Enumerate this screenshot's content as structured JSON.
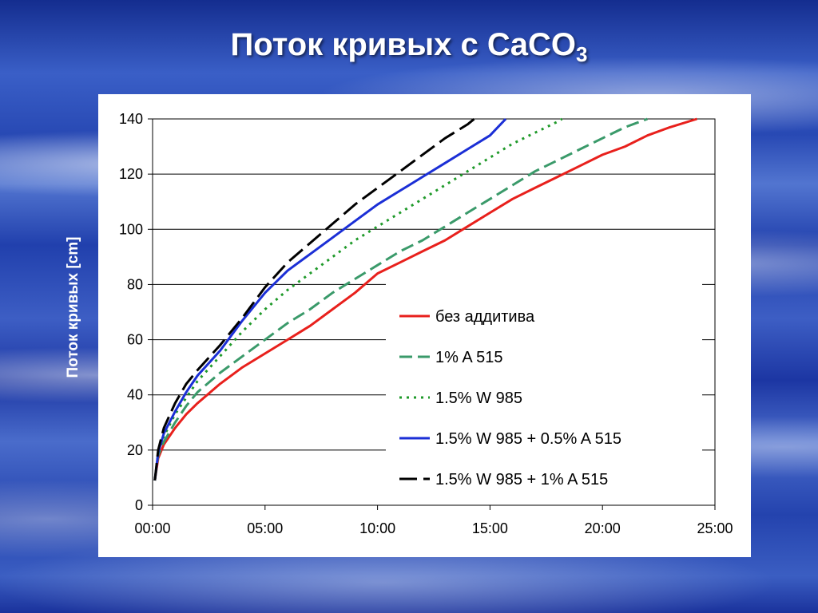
{
  "slide": {
    "title_main": "Поток кривых с CaCO",
    "title_sub": "3"
  },
  "chart_data": {
    "type": "line",
    "title": "",
    "xlabel": "",
    "ylabel": "Поток кривых [cm]",
    "xlim": [
      0,
      25
    ],
    "ylim": [
      0,
      140
    ],
    "x_ticks": [
      0,
      5,
      10,
      15,
      20,
      25
    ],
    "x_tick_labels": [
      "00:00",
      "05:00",
      "10:00",
      "15:00",
      "20:00",
      "25:00"
    ],
    "y_ticks": [
      0,
      20,
      40,
      60,
      80,
      100,
      120,
      140
    ],
    "y_tick_labels": [
      "0",
      "20",
      "40",
      "60",
      "80",
      "100",
      "120",
      "140"
    ],
    "grid": "horizontal",
    "legend_position": "lower-right",
    "series": [
      {
        "name": "без аддитива",
        "color": "#e8201c",
        "style": "solid",
        "x": [
          0.1,
          0.25,
          0.5,
          1,
          1.5,
          2,
          3,
          4,
          5,
          6,
          7,
          8,
          9,
          10,
          11,
          12,
          13,
          14,
          15,
          16,
          17,
          18,
          19,
          20,
          21,
          22,
          23,
          24.2
        ],
        "y": [
          9,
          17,
          22,
          28,
          33,
          37,
          44,
          50,
          55,
          60,
          65,
          71,
          77,
          84,
          88,
          92,
          96,
          101,
          106,
          111,
          115,
          119,
          123,
          127,
          130,
          134,
          137,
          140
        ]
      },
      {
        "name": "1% A 515",
        "color": "#3a9a6a",
        "style": "dash",
        "x": [
          0.1,
          0.25,
          0.5,
          1,
          1.5,
          2,
          3,
          4,
          5,
          6,
          7,
          8,
          9,
          10,
          11,
          12,
          13,
          14,
          15,
          16,
          17,
          18,
          19,
          20,
          21,
          22
        ],
        "y": [
          9,
          18,
          23,
          30,
          36,
          41,
          48,
          54,
          60,
          66,
          71,
          77,
          82,
          87,
          92,
          96,
          101,
          106,
          111,
          116,
          121,
          125,
          129,
          133,
          137,
          140
        ]
      },
      {
        "name": "1.5% W 985",
        "color": "#1f9a2a",
        "style": "dot",
        "x": [
          0.1,
          0.25,
          0.5,
          1,
          1.5,
          2,
          3,
          4,
          5,
          6,
          7,
          8,
          9,
          10,
          11,
          12,
          13,
          14,
          15,
          16,
          17,
          18,
          18.2
        ],
        "y": [
          9,
          19,
          25,
          33,
          39,
          45,
          54,
          63,
          71,
          78,
          84,
          90,
          96,
          101,
          106,
          111,
          116,
          121,
          126,
          131,
          135,
          139,
          140
        ]
      },
      {
        "name": "1.5% W 985 + 0.5% A 515",
        "color": "#1b2fd6",
        "style": "solid",
        "x": [
          0.1,
          0.25,
          0.5,
          1,
          1.5,
          2,
          3,
          4,
          5,
          6,
          7,
          8,
          9,
          10,
          11,
          12,
          13,
          14,
          15,
          15.7
        ],
        "y": [
          9,
          19,
          26,
          34,
          41,
          47,
          56,
          67,
          77,
          85,
          91,
          97,
          103,
          109,
          114,
          119,
          124,
          129,
          134,
          140
        ]
      },
      {
        "name": "1.5% W 985 + 1% A 515",
        "color": "#000000",
        "style": "longdash",
        "x": [
          0.1,
          0.25,
          0.5,
          1,
          1.5,
          2,
          3,
          4,
          5,
          6,
          7,
          8,
          9,
          10,
          11,
          12,
          13,
          14,
          14.3
        ],
        "y": [
          9,
          20,
          28,
          37,
          44,
          49,
          58,
          68,
          79,
          88,
          95,
          102,
          109,
          115,
          121,
          127,
          133,
          138,
          140
        ]
      }
    ]
  }
}
